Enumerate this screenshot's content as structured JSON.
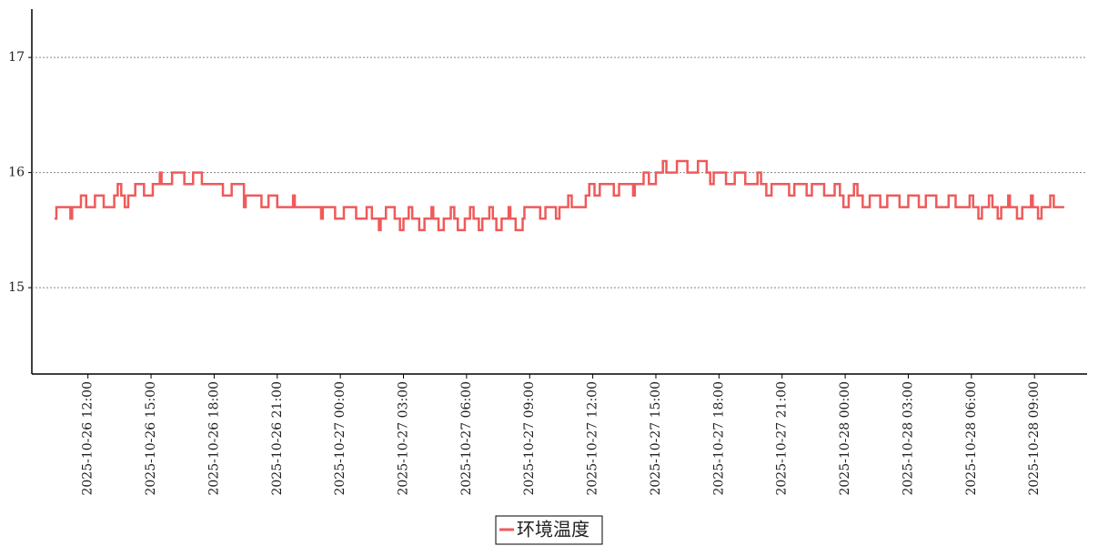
{
  "chart_data": {
    "type": "line",
    "step": "post",
    "grid": true,
    "legend": "bottom",
    "xlim": [
      "2025-10-26 09:20",
      "2025-10-28 11:30"
    ],
    "xticks": [
      "2025-10-26 12:00",
      "2025-10-26 15:00",
      "2025-10-26 18:00",
      "2025-10-26 21:00",
      "2025-10-27 00:00",
      "2025-10-27 03:00",
      "2025-10-27 06:00",
      "2025-10-27 09:00",
      "2025-10-27 12:00",
      "2025-10-27 15:00",
      "2025-10-27 18:00",
      "2025-10-27 21:00",
      "2025-10-28 00:00",
      "2025-10-28 03:00",
      "2025-10-28 06:00",
      "2025-10-28 09:00"
    ],
    "ylim": [
      14.25,
      17.42
    ],
    "yticks": [
      15,
      16,
      17
    ],
    "x": [
      "2025-10-26 10:25",
      "2025-10-26 10:30",
      "2025-10-26 11:10",
      "2025-10-26 11:15",
      "2025-10-26 11:40",
      "2025-10-26 11:55",
      "2025-10-26 12:20",
      "2025-10-26 12:45",
      "2025-10-26 13:15",
      "2025-10-26 13:25",
      "2025-10-26 13:35",
      "2025-10-26 13:45",
      "2025-10-26 13:55",
      "2025-10-26 14:15",
      "2025-10-26 14:40",
      "2025-10-26 15:05",
      "2025-10-26 15:25",
      "2025-10-26 15:30",
      "2025-10-26 16:00",
      "2025-10-26 16:35",
      "2025-10-26 17:00",
      "2025-10-26 17:25",
      "2025-10-26 18:25",
      "2025-10-26 18:50",
      "2025-10-26 19:25",
      "2025-10-26 19:30",
      "2025-10-26 20:15",
      "2025-10-26 20:35",
      "2025-10-26 21:00",
      "2025-10-26 21:45",
      "2025-10-26 21:50",
      "2025-10-26 23:05",
      "2025-10-26 23:10",
      "2025-10-26 23:45",
      "2025-10-27 00:10",
      "2025-10-27 00:45",
      "2025-10-27 01:15",
      "2025-10-27 01:30",
      "2025-10-27 01:50",
      "2025-10-27 01:55",
      "2025-10-27 02:10",
      "2025-10-27 02:35",
      "2025-10-27 02:50",
      "2025-10-27 03:00",
      "2025-10-27 03:15",
      "2025-10-27 03:25",
      "2025-10-27 03:45",
      "2025-10-27 04:00",
      "2025-10-27 04:20",
      "2025-10-27 04:25",
      "2025-10-27 04:40",
      "2025-10-27 04:55",
      "2025-10-27 05:15",
      "2025-10-27 05:25",
      "2025-10-27 05:35",
      "2025-10-27 05:55",
      "2025-10-27 06:10",
      "2025-10-27 06:20",
      "2025-10-27 06:35",
      "2025-10-27 06:45",
      "2025-10-27 07:05",
      "2025-10-27 07:15",
      "2025-10-27 07:25",
      "2025-10-27 07:40",
      "2025-10-27 08:00",
      "2025-10-27 08:05",
      "2025-10-27 08:20",
      "2025-10-27 08:40",
      "2025-10-27 08:45",
      "2025-10-27 09:30",
      "2025-10-27 09:45",
      "2025-10-27 10:15",
      "2025-10-27 10:25",
      "2025-10-27 10:50",
      "2025-10-27 11:00",
      "2025-10-27 11:40",
      "2025-10-27 11:50",
      "2025-10-27 12:05",
      "2025-10-27 12:20",
      "2025-10-27 13:00",
      "2025-10-27 13:15",
      "2025-10-27 13:55",
      "2025-10-27 14:00",
      "2025-10-27 14:25",
      "2025-10-27 14:40",
      "2025-10-27 15:00",
      "2025-10-27 15:20",
      "2025-10-27 15:30",
      "2025-10-27 16:00",
      "2025-10-27 16:30",
      "2025-10-27 17:00",
      "2025-10-27 17:25",
      "2025-10-27 17:35",
      "2025-10-27 17:45",
      "2025-10-27 18:20",
      "2025-10-27 18:45",
      "2025-10-27 19:15",
      "2025-10-27 19:50",
      "2025-10-27 20:00",
      "2025-10-27 20:15",
      "2025-10-27 20:30",
      "2025-10-27 21:20",
      "2025-10-27 21:35",
      "2025-10-27 22:10",
      "2025-10-27 22:25",
      "2025-10-27 23:00",
      "2025-10-27 23:30",
      "2025-10-27 23:45",
      "2025-10-27 23:55",
      "2025-10-28 00:10",
      "2025-10-28 00:25",
      "2025-10-28 00:35",
      "2025-10-28 00:50",
      "2025-10-28 01:10",
      "2025-10-28 01:40",
      "2025-10-28 02:00",
      "2025-10-28 02:35",
      "2025-10-28 03:00",
      "2025-10-28 03:30",
      "2025-10-28 03:50",
      "2025-10-28 04:20",
      "2025-10-28 04:55",
      "2025-10-28 05:15",
      "2025-10-28 05:55",
      "2025-10-28 06:05",
      "2025-10-28 06:20",
      "2025-10-28 06:30",
      "2025-10-28 06:50",
      "2025-10-28 07:00",
      "2025-10-28 07:15",
      "2025-10-28 07:25",
      "2025-10-28 07:45",
      "2025-10-28 07:50",
      "2025-10-28 08:10",
      "2025-10-28 08:25",
      "2025-10-28 08:50",
      "2025-10-28 08:55",
      "2025-10-28 09:10",
      "2025-10-28 09:20",
      "2025-10-28 09:45",
      "2025-10-28 09:55",
      "2025-10-28 10:25"
    ],
    "series": [
      {
        "name": "环境温度",
        "color": "#ef5a5a",
        "values": [
          15.6,
          15.7,
          15.6,
          15.7,
          15.8,
          15.7,
          15.8,
          15.7,
          15.8,
          15.9,
          15.8,
          15.7,
          15.8,
          15.9,
          15.8,
          15.9,
          16.0,
          15.9,
          16.0,
          15.9,
          16.0,
          15.9,
          15.8,
          15.9,
          15.7,
          15.8,
          15.7,
          15.8,
          15.7,
          15.8,
          15.7,
          15.6,
          15.7,
          15.6,
          15.7,
          15.6,
          15.7,
          15.6,
          15.5,
          15.6,
          15.7,
          15.6,
          15.5,
          15.6,
          15.7,
          15.6,
          15.5,
          15.6,
          15.7,
          15.6,
          15.5,
          15.6,
          15.7,
          15.6,
          15.5,
          15.6,
          15.7,
          15.6,
          15.5,
          15.6,
          15.7,
          15.6,
          15.5,
          15.6,
          15.7,
          15.6,
          15.5,
          15.6,
          15.7,
          15.6,
          15.7,
          15.6,
          15.7,
          15.8,
          15.7,
          15.8,
          15.9,
          15.8,
          15.9,
          15.8,
          15.9,
          15.8,
          15.9,
          16.0,
          15.9,
          16.0,
          16.1,
          16.0,
          16.1,
          16.0,
          16.1,
          16.0,
          15.9,
          16.0,
          15.9,
          16.0,
          15.9,
          16.0,
          15.9,
          15.8,
          15.9,
          15.8,
          15.9,
          15.8,
          15.9,
          15.8,
          15.9,
          15.8,
          15.7,
          15.8,
          15.9,
          15.8,
          15.7,
          15.8,
          15.7,
          15.8,
          15.7,
          15.8,
          15.7,
          15.8,
          15.7,
          15.8,
          15.7,
          15.8,
          15.7,
          15.6,
          15.7,
          15.8,
          15.7,
          15.6,
          15.7,
          15.8,
          15.7,
          15.6,
          15.7,
          15.8,
          15.7,
          15.6,
          15.7,
          15.8,
          15.7,
          15.7
        ]
      }
    ]
  }
}
